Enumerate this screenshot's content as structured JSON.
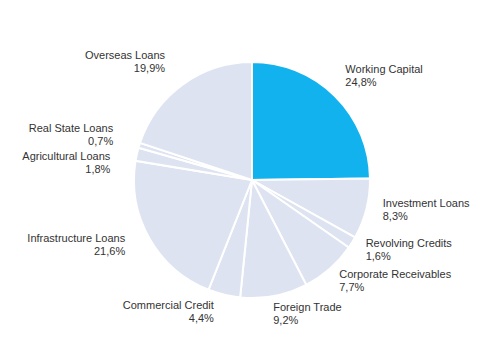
{
  "chart_data": {
    "type": "pie",
    "categories": [
      "Working Capital",
      "Investment Loans",
      "Revolving Credits",
      "Corporate Receivables",
      "Foreign Trade",
      "Commercial Credit",
      "Infrastructure Loans",
      "Agricultural Loans",
      "Real State Loans",
      "Overseas Loans"
    ],
    "values": [
      24.8,
      8.3,
      1.6,
      7.7,
      9.2,
      4.4,
      21.6,
      1.8,
      0.7,
      19.9
    ],
    "value_labels": [
      "24,8%",
      "8,3%",
      "1,6%",
      "7,7%",
      "9,2%",
      "4,4%",
      "21,6%",
      "1,8%",
      "0,7%",
      "19,9%"
    ],
    "colors": [
      "#12b2ee",
      "#dde3f0",
      "#dde3f0",
      "#dde3f0",
      "#dde3f0",
      "#dde3f0",
      "#dde3f0",
      "#dde3f0",
      "#dde3f0",
      "#dde3f0"
    ],
    "data_labels": true
  }
}
